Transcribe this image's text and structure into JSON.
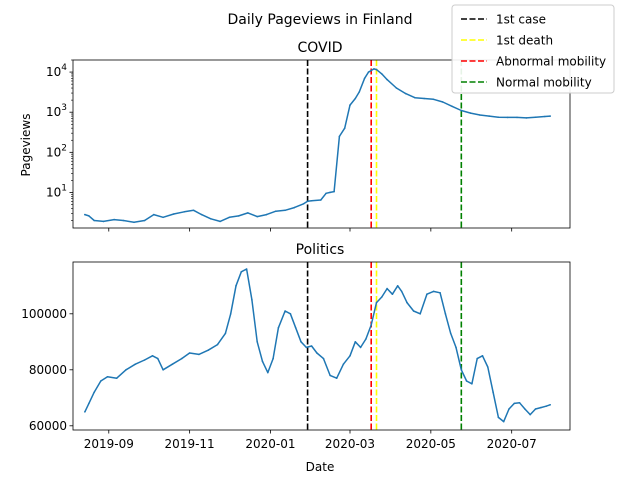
{
  "figure": {
    "suptitle": "Daily Pageviews in Finland",
    "xlabel": "Date"
  },
  "legend": {
    "placement": "top-right",
    "entries": [
      {
        "label": "1st case",
        "color": "#000000"
      },
      {
        "label": "1st death",
        "color": "#ffff00"
      },
      {
        "label": "Abnormal mobility",
        "color": "#ff0000"
      },
      {
        "label": "Normal mobility",
        "color": "#008000"
      }
    ]
  },
  "x_ticks": [
    "2019-09",
    "2019-11",
    "2020-01",
    "2020-03",
    "2020-05",
    "2020-07"
  ],
  "chart_data": [
    {
      "type": "line",
      "title": "COVID",
      "ylabel": "Pageviews",
      "yscale": "log",
      "ylim": [
        1.3,
        20000
      ],
      "xlim": [
        "2019-08-05",
        "2020-08-14"
      ],
      "yticks": [
        {
          "value": 10,
          "label": "10",
          "sup": "1"
        },
        {
          "value": 100,
          "label": "10",
          "sup": "2"
        },
        {
          "value": 1000,
          "label": "10",
          "sup": "3"
        },
        {
          "value": 10000,
          "label": "10",
          "sup": "4"
        }
      ],
      "series": [
        {
          "color": "#1f77b4",
          "x": [
            "2019-08-14",
            "2019-08-17",
            "2019-08-21",
            "2019-08-28",
            "2019-09-05",
            "2019-09-12",
            "2019-09-20",
            "2019-09-28",
            "2019-10-05",
            "2019-10-12",
            "2019-10-20",
            "2019-10-28",
            "2019-11-04",
            "2019-11-10",
            "2019-11-17",
            "2019-11-24",
            "2019-12-01",
            "2019-12-08",
            "2019-12-15",
            "2019-12-22",
            "2019-12-29",
            "2020-01-05",
            "2020-01-12",
            "2020-01-19",
            "2020-01-26",
            "2020-01-29",
            "2020-02-01",
            "2020-02-08",
            "2020-02-12",
            "2020-02-15",
            "2020-02-18",
            "2020-02-22",
            "2020-02-26",
            "2020-03-01",
            "2020-03-05",
            "2020-03-08",
            "2020-03-12",
            "2020-03-15",
            "2020-03-19",
            "2020-03-21",
            "2020-03-25",
            "2020-03-29",
            "2020-04-05",
            "2020-04-12",
            "2020-04-19",
            "2020-04-26",
            "2020-05-03",
            "2020-05-10",
            "2020-05-17",
            "2020-05-24",
            "2020-05-31",
            "2020-06-07",
            "2020-06-14",
            "2020-06-21",
            "2020-06-28",
            "2020-07-05",
            "2020-07-12",
            "2020-07-19",
            "2020-07-26",
            "2020-07-30"
          ],
          "values": [
            2.8,
            2.6,
            2.0,
            1.9,
            2.1,
            2.0,
            1.8,
            2.0,
            2.8,
            2.4,
            2.9,
            3.3,
            3.6,
            2.8,
            2.2,
            1.9,
            2.4,
            2.6,
            3.1,
            2.5,
            2.8,
            3.4,
            3.6,
            4.2,
            5.2,
            6.0,
            6.2,
            6.5,
            9.5,
            10.0,
            10.5,
            250,
            400,
            1500,
            2200,
            3200,
            7000,
            10000,
            12000,
            11500,
            9000,
            6500,
            4000,
            2900,
            2300,
            2200,
            2100,
            1800,
            1400,
            1100,
            950,
            850,
            800,
            750,
            740,
            740,
            720,
            750,
            780,
            800
          ]
        }
      ]
    },
    {
      "type": "line",
      "title": "Politics",
      "ylabel": "",
      "yscale": "linear",
      "ylim": [
        58500,
        118500
      ],
      "xlim": [
        "2019-08-05",
        "2020-08-14"
      ],
      "yticks": [
        {
          "value": 60000,
          "label": "60000"
        },
        {
          "value": 80000,
          "label": "80000"
        },
        {
          "value": 100000,
          "label": "100000"
        }
      ],
      "series": [
        {
          "color": "#1f77b4",
          "x": [
            "2019-08-14",
            "2019-08-17",
            "2019-08-21",
            "2019-08-26",
            "2019-08-31",
            "2019-09-07",
            "2019-09-14",
            "2019-09-21",
            "2019-09-28",
            "2019-10-04",
            "2019-10-08",
            "2019-10-12",
            "2019-10-19",
            "2019-10-26",
            "2019-11-01",
            "2019-11-08",
            "2019-11-15",
            "2019-11-22",
            "2019-11-28",
            "2019-12-02",
            "2019-12-06",
            "2019-12-10",
            "2019-12-14",
            "2019-12-18",
            "2019-12-22",
            "2019-12-26",
            "2019-12-30",
            "2020-01-03",
            "2020-01-07",
            "2020-01-12",
            "2020-01-16",
            "2020-01-20",
            "2020-01-24",
            "2020-01-28",
            "2020-02-01",
            "2020-02-05",
            "2020-02-10",
            "2020-02-15",
            "2020-02-20",
            "2020-02-25",
            "2020-03-01",
            "2020-03-05",
            "2020-03-09",
            "2020-03-13",
            "2020-03-17",
            "2020-03-21",
            "2020-03-25",
            "2020-03-29",
            "2020-04-02",
            "2020-04-06",
            "2020-04-09",
            "2020-04-13",
            "2020-04-18",
            "2020-04-23",
            "2020-04-28",
            "2020-05-03",
            "2020-05-08",
            "2020-05-12",
            "2020-05-16",
            "2020-05-20",
            "2020-05-24",
            "2020-05-28",
            "2020-06-01",
            "2020-06-05",
            "2020-06-09",
            "2020-06-13",
            "2020-06-17",
            "2020-06-21",
            "2020-06-25",
            "2020-06-29",
            "2020-07-03",
            "2020-07-07",
            "2020-07-11",
            "2020-07-15",
            "2020-07-19",
            "2020-07-23",
            "2020-07-27",
            "2020-07-30"
          ],
          "values": [
            65000,
            68000,
            72000,
            76000,
            77500,
            77000,
            80000,
            82000,
            83500,
            85000,
            84000,
            80000,
            82000,
            84000,
            86000,
            85500,
            87000,
            89000,
            93000,
            100000,
            110000,
            115000,
            116000,
            105000,
            90000,
            83000,
            79000,
            84000,
            95000,
            101000,
            100000,
            95000,
            90000,
            88000,
            88500,
            86000,
            84000,
            78000,
            77000,
            82000,
            85000,
            90000,
            88000,
            91000,
            96000,
            104000,
            106000,
            109000,
            107000,
            110000,
            108000,
            104000,
            101000,
            100000,
            107000,
            108000,
            107500,
            100000,
            93000,
            88000,
            80000,
            76000,
            75000,
            84000,
            85000,
            81000,
            72000,
            63000,
            61500,
            66000,
            68000,
            68200,
            66000,
            64000,
            66000,
            66500,
            67000,
            67500
          ]
        }
      ]
    }
  ],
  "events": [
    {
      "name": "1st case",
      "date": "2020-01-29",
      "color": "#000000"
    },
    {
      "name": "1st death",
      "date": "2020-03-21",
      "color": "#ffff00"
    },
    {
      "name": "Abnormal mobility",
      "date": "2020-03-17",
      "color": "#ff0000"
    },
    {
      "name": "Normal mobility",
      "date": "2020-05-24",
      "color": "#008000"
    }
  ]
}
